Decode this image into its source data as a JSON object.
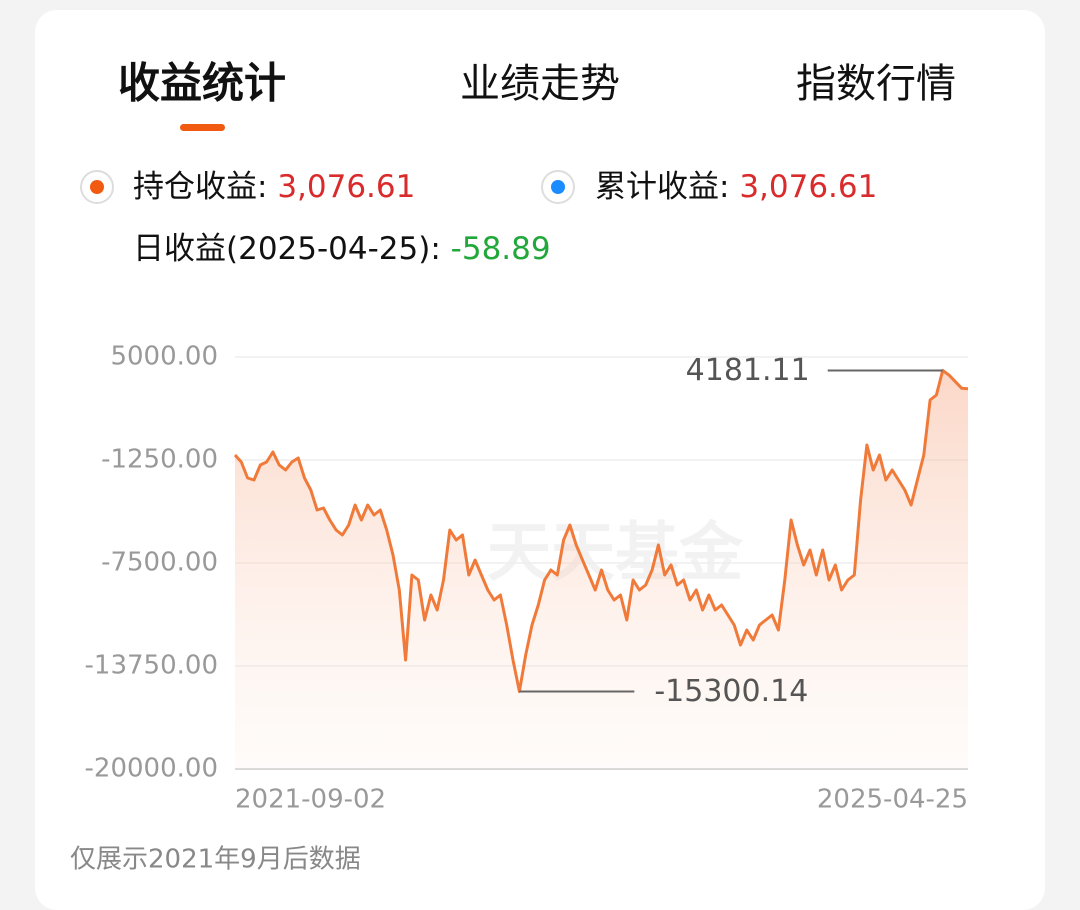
{
  "tabs": [
    "收益统计",
    "业绩走势",
    "指数行情"
  ],
  "summary": {
    "holding": {
      "label": "持仓收益: ",
      "value": "3,076.61"
    },
    "cumulative": {
      "label": "累计收益: ",
      "value": "3,076.61"
    },
    "daily": {
      "label": "日收益(2025-04-25): ",
      "value": "-58.89"
    }
  },
  "footer": "仅展示2021年9月后数据",
  "chart_data": {
    "type": "line",
    "watermark": "天天基金",
    "color": "#f07a3a",
    "grid": true,
    "ylim": [
      -20000,
      5000
    ],
    "yticks": [
      {
        "value": 5000,
        "label": "5000.00"
      },
      {
        "value": -1250,
        "label": "-1250.00"
      },
      {
        "value": -7500,
        "label": "-7500.00"
      },
      {
        "value": -13750,
        "label": "-13750.00"
      },
      {
        "value": -20000,
        "label": "-20000.00"
      }
    ],
    "annotations": [
      4181.11,
      -15300.14
    ],
    "categories": [
      "2021-09-02",
      null,
      null,
      null,
      null,
      null,
      null,
      null,
      null,
      null,
      null,
      null,
      null,
      null,
      null,
      null,
      null,
      null,
      null,
      null,
      null,
      null,
      null,
      null,
      null,
      null,
      null,
      null,
      null,
      null,
      null,
      null,
      null,
      null,
      null,
      null,
      null,
      null,
      null,
      null,
      null,
      null,
      null,
      null,
      null,
      null,
      null,
      null,
      null,
      null,
      null,
      null,
      null,
      null,
      null,
      null,
      null,
      null,
      null,
      null,
      null,
      null,
      null,
      null,
      null,
      null,
      null,
      null,
      null,
      null,
      null,
      null,
      null,
      null,
      null,
      null,
      null,
      null,
      null,
      null,
      null,
      null,
      null,
      null,
      null,
      null,
      null,
      null,
      null,
      null,
      null,
      null,
      null,
      null,
      null,
      null,
      null,
      null,
      null,
      null,
      null,
      null,
      null,
      null,
      null,
      null,
      null,
      null,
      null,
      null,
      null,
      null,
      null,
      null,
      null,
      null,
      "2025-04-25"
    ],
    "values": [
      -947,
      -1371,
      -2342,
      -2464,
      -1553,
      -1371,
      -765,
      -1553,
      -1857,
      -1371,
      -1129,
      -2342,
      -3070,
      -4284,
      -4163,
      -4891,
      -5498,
      -5801,
      -5194,
      -3981,
      -4891,
      -3981,
      -4587,
      -4284,
      -5498,
      -7015,
      -9138,
      -13386,
      -8228,
      -8532,
      -10959,
      -9442,
      -10352,
      -8532,
      -5498,
      -6104,
      -5801,
      -8228,
      -7318,
      -8228,
      -9138,
      -9745,
      -9442,
      -11262,
      -13386,
      -15300.14,
      -13083,
      -11262,
      -10049,
      -8532,
      -7925,
      -8228,
      -6104,
      -5194,
      -6408,
      -7318,
      -8228,
      -9138,
      -7925,
      -9138,
      -9745,
      -9442,
      -10959,
      -8532,
      -9138,
      -8835,
      -7925,
      -6408,
      -8228,
      -7621,
      -8835,
      -8532,
      -9745,
      -9138,
      -10352,
      -9442,
      -10352,
      -10049,
      -10655,
      -11262,
      -12476,
      -11566,
      -12172,
      -11262,
      -10959,
      -10655,
      -11566,
      -8532,
      -4891,
      -6408,
      -7621,
      -6711,
      -8228,
      -6711,
      -8532,
      -7621,
      -9138,
      -8532,
      -8228,
      -3677,
      -340,
      -1857,
      -947,
      -2464,
      -1857,
      -2464,
      -3070,
      -3981,
      -2464,
      -947,
      2391,
      2694,
      4181.11,
      3900,
      3500,
      3100,
      3076.61
    ]
  }
}
